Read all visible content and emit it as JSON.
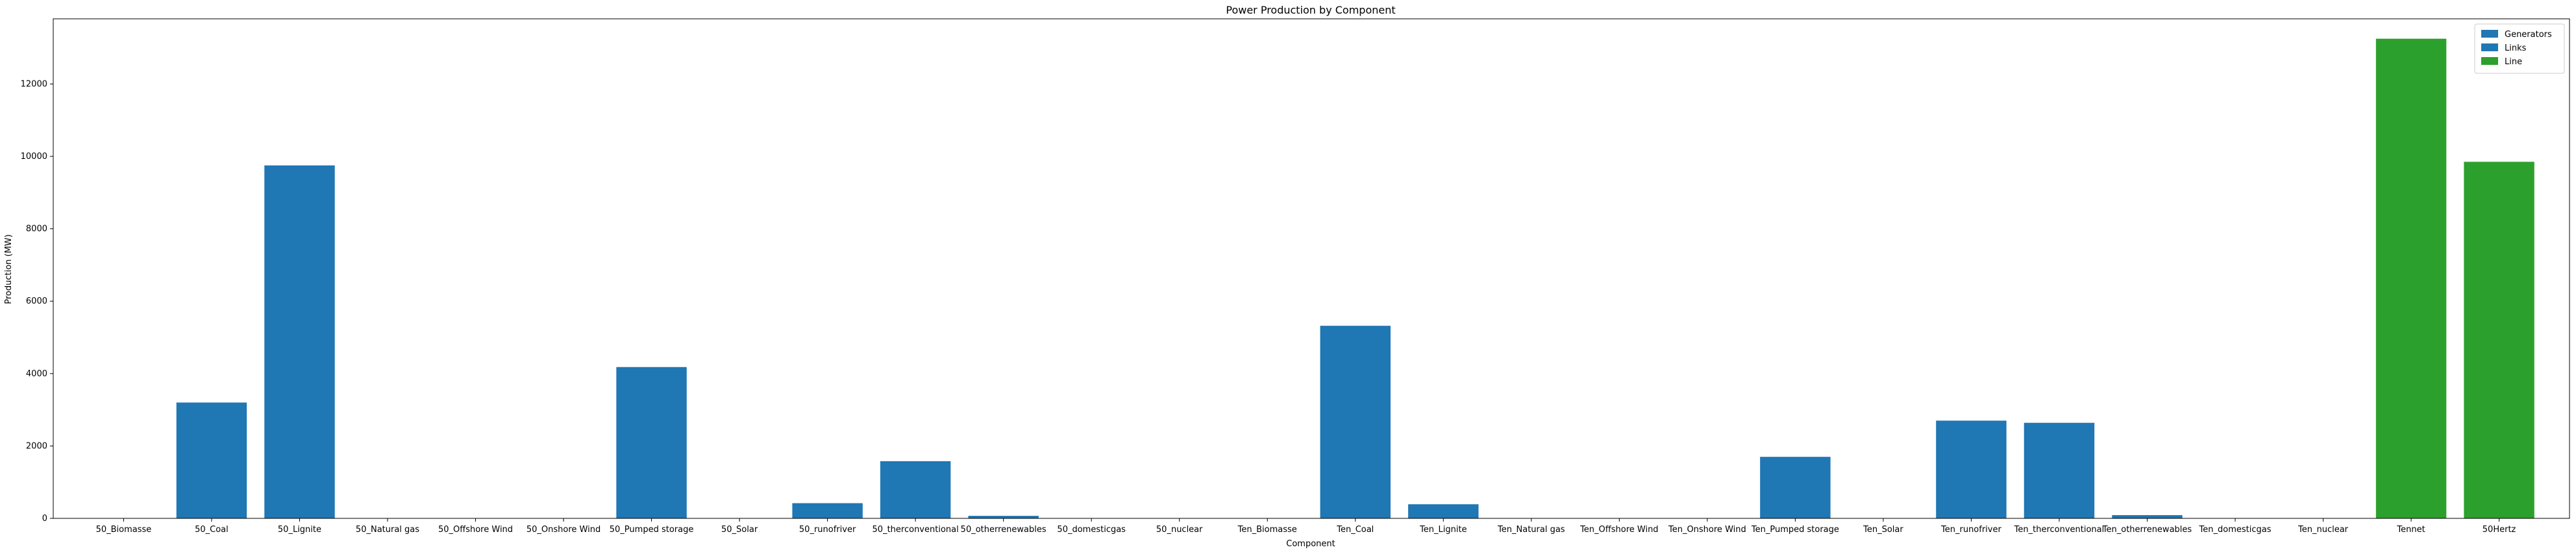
{
  "chart_data": {
    "type": "bar",
    "title": "Power Production by Component",
    "xlabel": "Component",
    "ylabel": "Production (MW)",
    "ylim": [
      0,
      13800
    ],
    "yticks": [
      0,
      2000,
      4000,
      6000,
      8000,
      10000,
      12000
    ],
    "grid": false,
    "legend_position": "top-right",
    "categories": [
      "50_Biomasse",
      "50_Coal",
      "50_Lignite",
      "50_Natural gas",
      "50_Offshore Wind",
      "50_Onshore Wind",
      "50_Pumped storage",
      "50_Solar",
      "50_runofriver",
      "50_therconventional",
      "50_otherrenewables",
      "50_domesticgas",
      "50_nuclear",
      "Ten_Biomasse",
      "Ten_Coal",
      "Ten_Lignite",
      "Ten_Natural gas",
      "Ten_Offshore Wind",
      "Ten_Onshore Wind",
      "Ten_Pumped storage",
      "Ten_Solar",
      "Ten_runofriver",
      "Ten_therconventional",
      "Ten_otherrenewables",
      "Ten_domesticgas",
      "Ten_nuclear",
      "Tennet",
      "50Hertz"
    ],
    "series": [
      {
        "name": "Generators",
        "color": "#1f77b4",
        "values": [
          0,
          3200,
          9750,
          0,
          0,
          0,
          0,
          0,
          0,
          0,
          0,
          0,
          0,
          0,
          5320,
          0,
          0,
          0,
          0,
          0,
          0,
          0,
          0,
          0,
          0,
          0,
          null,
          null
        ]
      },
      {
        "name": "Links",
        "color": "#1f77b4",
        "values": [
          null,
          null,
          null,
          null,
          null,
          null,
          4180,
          0,
          420,
          1580,
          70,
          0,
          0,
          null,
          null,
          390,
          0,
          0,
          0,
          1700,
          0,
          2700,
          2640,
          90,
          0,
          0,
          null,
          null
        ]
      },
      {
        "name": "Line",
        "color": "#2ca02c",
        "values": [
          null,
          null,
          null,
          null,
          null,
          null,
          null,
          null,
          null,
          null,
          null,
          null,
          null,
          null,
          null,
          null,
          null,
          null,
          null,
          null,
          null,
          null,
          null,
          null,
          null,
          null,
          13250,
          9850
        ]
      }
    ]
  }
}
